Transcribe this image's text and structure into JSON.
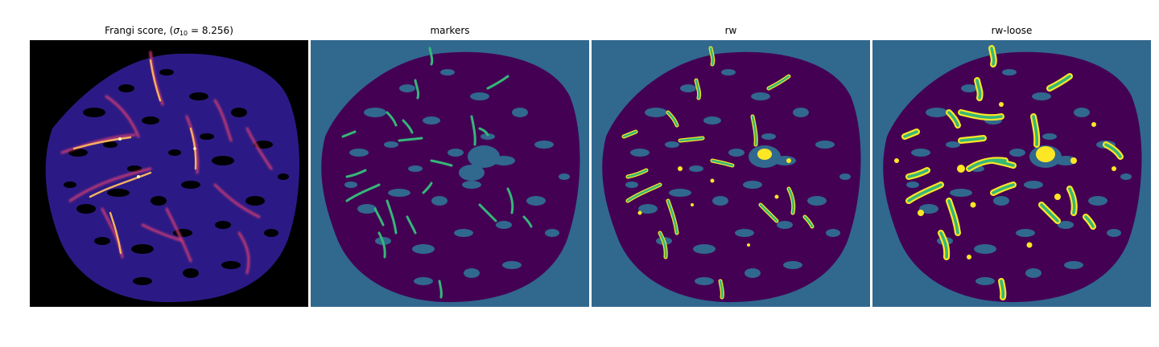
{
  "figure": {
    "panels": [
      {
        "id": "frangi",
        "title_prefix": "Frangi score, (",
        "title_symbol": "σ",
        "title_subscript": "10",
        "title_suffix": " = 8.256)",
        "colormap": "magma",
        "background_color": "#000000"
      },
      {
        "id": "markers",
        "title": "markers",
        "colormap": "viridis",
        "background_color": "#31688e",
        "region_color": "#440154",
        "marker_color": "#35b779"
      },
      {
        "id": "rw",
        "title": "rw",
        "colormap": "viridis",
        "background_color": "#31688e",
        "region_color": "#440154",
        "vessel_color": "#35b779",
        "edge_color": "#fde725"
      },
      {
        "id": "rw-loose",
        "title": "rw-loose",
        "colormap": "viridis",
        "background_color": "#31688e",
        "region_color": "#440154",
        "vessel_color": "#35b779",
        "edge_color": "#fde725"
      }
    ]
  }
}
